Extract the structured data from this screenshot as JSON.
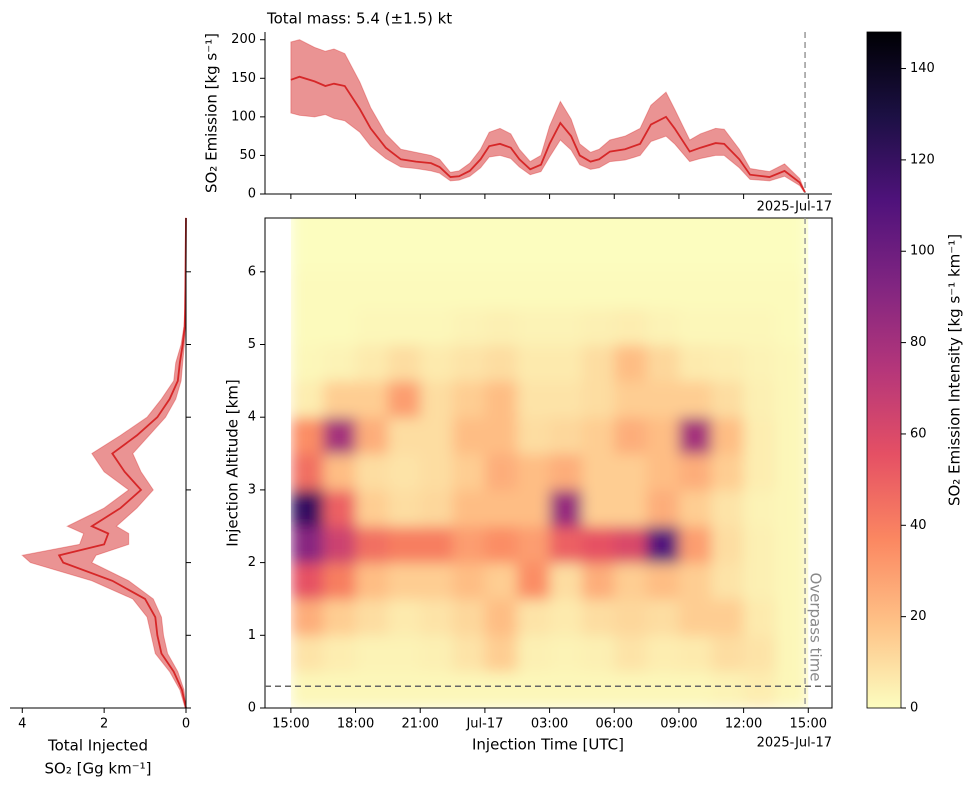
{
  "chart_data": [
    {
      "type": "line",
      "title": "Total mass: 5.4 (±1.5) kt",
      "ylabel": "SO₂ Emission [kg s⁻¹]",
      "color": "#d62728",
      "x": [
        0,
        0.4,
        1.1,
        1.6,
        2.0,
        2.5,
        3.2,
        3.7,
        4.4,
        5.1,
        5.8,
        6.5,
        6.9,
        7.4,
        7.8,
        8.3,
        8.8,
        9.2,
        9.7,
        10.2,
        10.6,
        11.1,
        11.6,
        12.0,
        12.5,
        13.0,
        13.4,
        13.9,
        14.3,
        14.8,
        15.5,
        16.2,
        16.7,
        17.4,
        17.8,
        18.5,
        19.0,
        19.7,
        20.1,
        20.8,
        21.3,
        22.2,
        22.9,
        23.6,
        23.85
      ],
      "values": [
        148,
        152,
        146,
        140,
        143,
        140,
        110,
        85,
        60,
        45,
        42,
        40,
        35,
        22,
        23,
        30,
        45,
        62,
        65,
        60,
        45,
        32,
        38,
        65,
        92,
        75,
        50,
        42,
        45,
        55,
        58,
        65,
        90,
        100,
        85,
        55,
        60,
        66,
        65,
        45,
        25,
        22,
        30,
        15,
        2
      ],
      "lower": [
        105,
        102,
        100,
        103,
        98,
        95,
        80,
        62,
        46,
        35,
        33,
        30,
        27,
        17,
        18,
        23,
        34,
        48,
        50,
        46,
        35,
        25,
        29,
        48,
        70,
        57,
        38,
        32,
        34,
        42,
        44,
        50,
        68,
        75,
        65,
        42,
        46,
        50,
        50,
        34,
        19,
        17,
        23,
        11,
        1
      ],
      "upper": [
        197,
        200,
        190,
        185,
        188,
        182,
        145,
        112,
        78,
        58,
        54,
        50,
        45,
        28,
        30,
        40,
        58,
        80,
        85,
        78,
        58,
        42,
        50,
        88,
        120,
        97,
        65,
        54,
        58,
        70,
        75,
        85,
        115,
        132,
        110,
        70,
        78,
        85,
        84,
        58,
        33,
        29,
        39,
        20,
        3
      ],
      "ylim": [
        0,
        210
      ],
      "yticks": [
        0,
        50,
        100,
        150,
        200
      ],
      "vline": 23.85,
      "offset_label": "2025-Jul-17"
    },
    {
      "type": "heatmap",
      "xlabel": "Injection Time [UTC]",
      "ylabel": "Injection Altitude [km]",
      "offset_label": "2025-Jul-17",
      "colormap": "magma_r",
      "clim": [
        0,
        148
      ],
      "cticks": [
        0,
        20,
        40,
        60,
        80,
        100,
        120,
        140
      ],
      "clabel": "SO₂ Emission Intensity [kg s⁻¹ km⁻¹]",
      "x_bins": [
        0,
        1.5,
        3,
        4.5,
        6,
        7.5,
        9,
        10.5,
        12,
        13.5,
        15,
        16.5,
        18,
        19.5,
        21,
        22.5,
        24
      ],
      "y_bins": [
        0,
        0.5,
        1,
        1.5,
        2,
        2.5,
        3,
        3.5,
        4,
        4.5,
        5,
        5.5,
        6,
        6.5,
        7
      ],
      "z": [
        [
          2,
          2,
          2,
          2,
          2,
          2,
          2,
          2,
          2,
          2,
          2,
          2,
          2,
          3,
          5,
          2
        ],
        [
          8,
          5,
          3,
          3,
          4,
          8,
          15,
          4,
          3,
          4,
          8,
          5,
          6,
          10,
          8,
          2
        ],
        [
          25,
          15,
          10,
          6,
          8,
          12,
          20,
          8,
          6,
          10,
          12,
          10,
          15,
          15,
          6,
          2
        ],
        [
          55,
          40,
          20,
          15,
          15,
          20,
          15,
          35,
          10,
          25,
          15,
          20,
          15,
          8,
          4,
          2
        ],
        [
          90,
          65,
          45,
          40,
          40,
          30,
          35,
          30,
          50,
          55,
          60,
          110,
          30,
          10,
          4,
          2
        ],
        [
          120,
          50,
          15,
          10,
          12,
          20,
          20,
          20,
          85,
          15,
          15,
          25,
          15,
          8,
          3,
          2
        ],
        [
          45,
          20,
          10,
          8,
          10,
          15,
          25,
          20,
          25,
          15,
          15,
          20,
          25,
          15,
          5,
          2
        ],
        [
          35,
          80,
          25,
          10,
          10,
          20,
          20,
          10,
          12,
          15,
          25,
          20,
          80,
          20,
          5,
          2
        ],
        [
          5,
          15,
          15,
          30,
          10,
          15,
          20,
          8,
          8,
          10,
          15,
          15,
          15,
          10,
          4,
          2
        ],
        [
          2,
          3,
          6,
          10,
          6,
          8,
          10,
          6,
          6,
          10,
          20,
          12,
          6,
          5,
          3,
          2
        ],
        [
          1,
          1,
          2,
          2,
          2,
          3,
          4,
          3,
          3,
          4,
          5,
          3,
          2,
          2,
          2,
          1
        ],
        [
          1,
          1,
          1,
          1,
          1,
          1,
          1,
          1,
          1,
          1,
          1,
          1,
          1,
          1,
          1,
          1
        ],
        [
          0,
          0,
          0,
          0,
          0,
          0,
          0,
          0,
          0,
          0,
          0,
          0,
          0,
          0,
          0,
          0
        ],
        [
          0,
          0,
          0,
          0,
          0,
          0,
          0,
          0,
          0,
          0,
          0,
          0,
          0,
          0,
          0,
          0
        ]
      ],
      "xlim": [
        -1.2,
        25.1
      ],
      "xticks": [
        {
          "value": 0,
          "label": "15:00"
        },
        {
          "value": 3,
          "label": "18:00"
        },
        {
          "value": 6,
          "label": "21:00"
        },
        {
          "value": 9,
          "label": "Jul-17"
        },
        {
          "value": 12,
          "label": "03:00"
        },
        {
          "value": 15,
          "label": "06:00"
        },
        {
          "value": 18,
          "label": "09:00"
        },
        {
          "value": 21,
          "label": "12:00"
        },
        {
          "value": 24,
          "label": "15:00"
        }
      ],
      "ylim": [
        0,
        6.74
      ],
      "yticks": [
        0,
        1,
        2,
        3,
        4,
        5,
        6
      ],
      "hline": 0.3,
      "vline": 23.85,
      "vline_label": "Overpass time"
    },
    {
      "type": "line",
      "orientation": "horizontal",
      "xlabel": [
        "Total Injected",
        "SO₂ [Gg km⁻¹]"
      ],
      "color": "#d62728",
      "y": [
        0,
        0.25,
        0.5,
        0.75,
        1.0,
        1.25,
        1.5,
        1.75,
        2.0,
        2.1,
        2.25,
        2.4,
        2.5,
        2.75,
        3.0,
        3.25,
        3.5,
        3.75,
        4.0,
        4.25,
        4.5,
        4.75,
        5.0,
        5.25,
        5.5,
        6.0,
        6.74
      ],
      "values": [
        0,
        0.1,
        0.3,
        0.6,
        0.7,
        0.75,
        1.0,
        1.8,
        3.0,
        3.1,
        2.0,
        1.9,
        2.3,
        1.6,
        1.1,
        1.5,
        1.8,
        1.2,
        0.7,
        0.4,
        0.2,
        0.15,
        0.08,
        0.03,
        0.02,
        0.01,
        0
      ],
      "lower": [
        0,
        0.05,
        0.2,
        0.45,
        0.55,
        0.6,
        0.8,
        1.4,
        2.3,
        2.2,
        1.4,
        1.4,
        1.7,
        1.2,
        0.8,
        1.1,
        1.3,
        0.9,
        0.5,
        0.25,
        0.12,
        0.08,
        0.04,
        0.01,
        0.01,
        0,
        0
      ],
      "upper": [
        0.02,
        0.15,
        0.4,
        0.75,
        0.85,
        0.95,
        1.3,
        2.3,
        3.8,
        4.0,
        2.6,
        2.5,
        2.9,
        2.0,
        1.4,
        2.0,
        2.3,
        1.6,
        0.95,
        0.6,
        0.3,
        0.25,
        0.12,
        0.05,
        0.03,
        0.02,
        0.01
      ],
      "xlim": [
        4.3,
        0
      ],
      "xticks": [
        4,
        2,
        0
      ]
    }
  ]
}
